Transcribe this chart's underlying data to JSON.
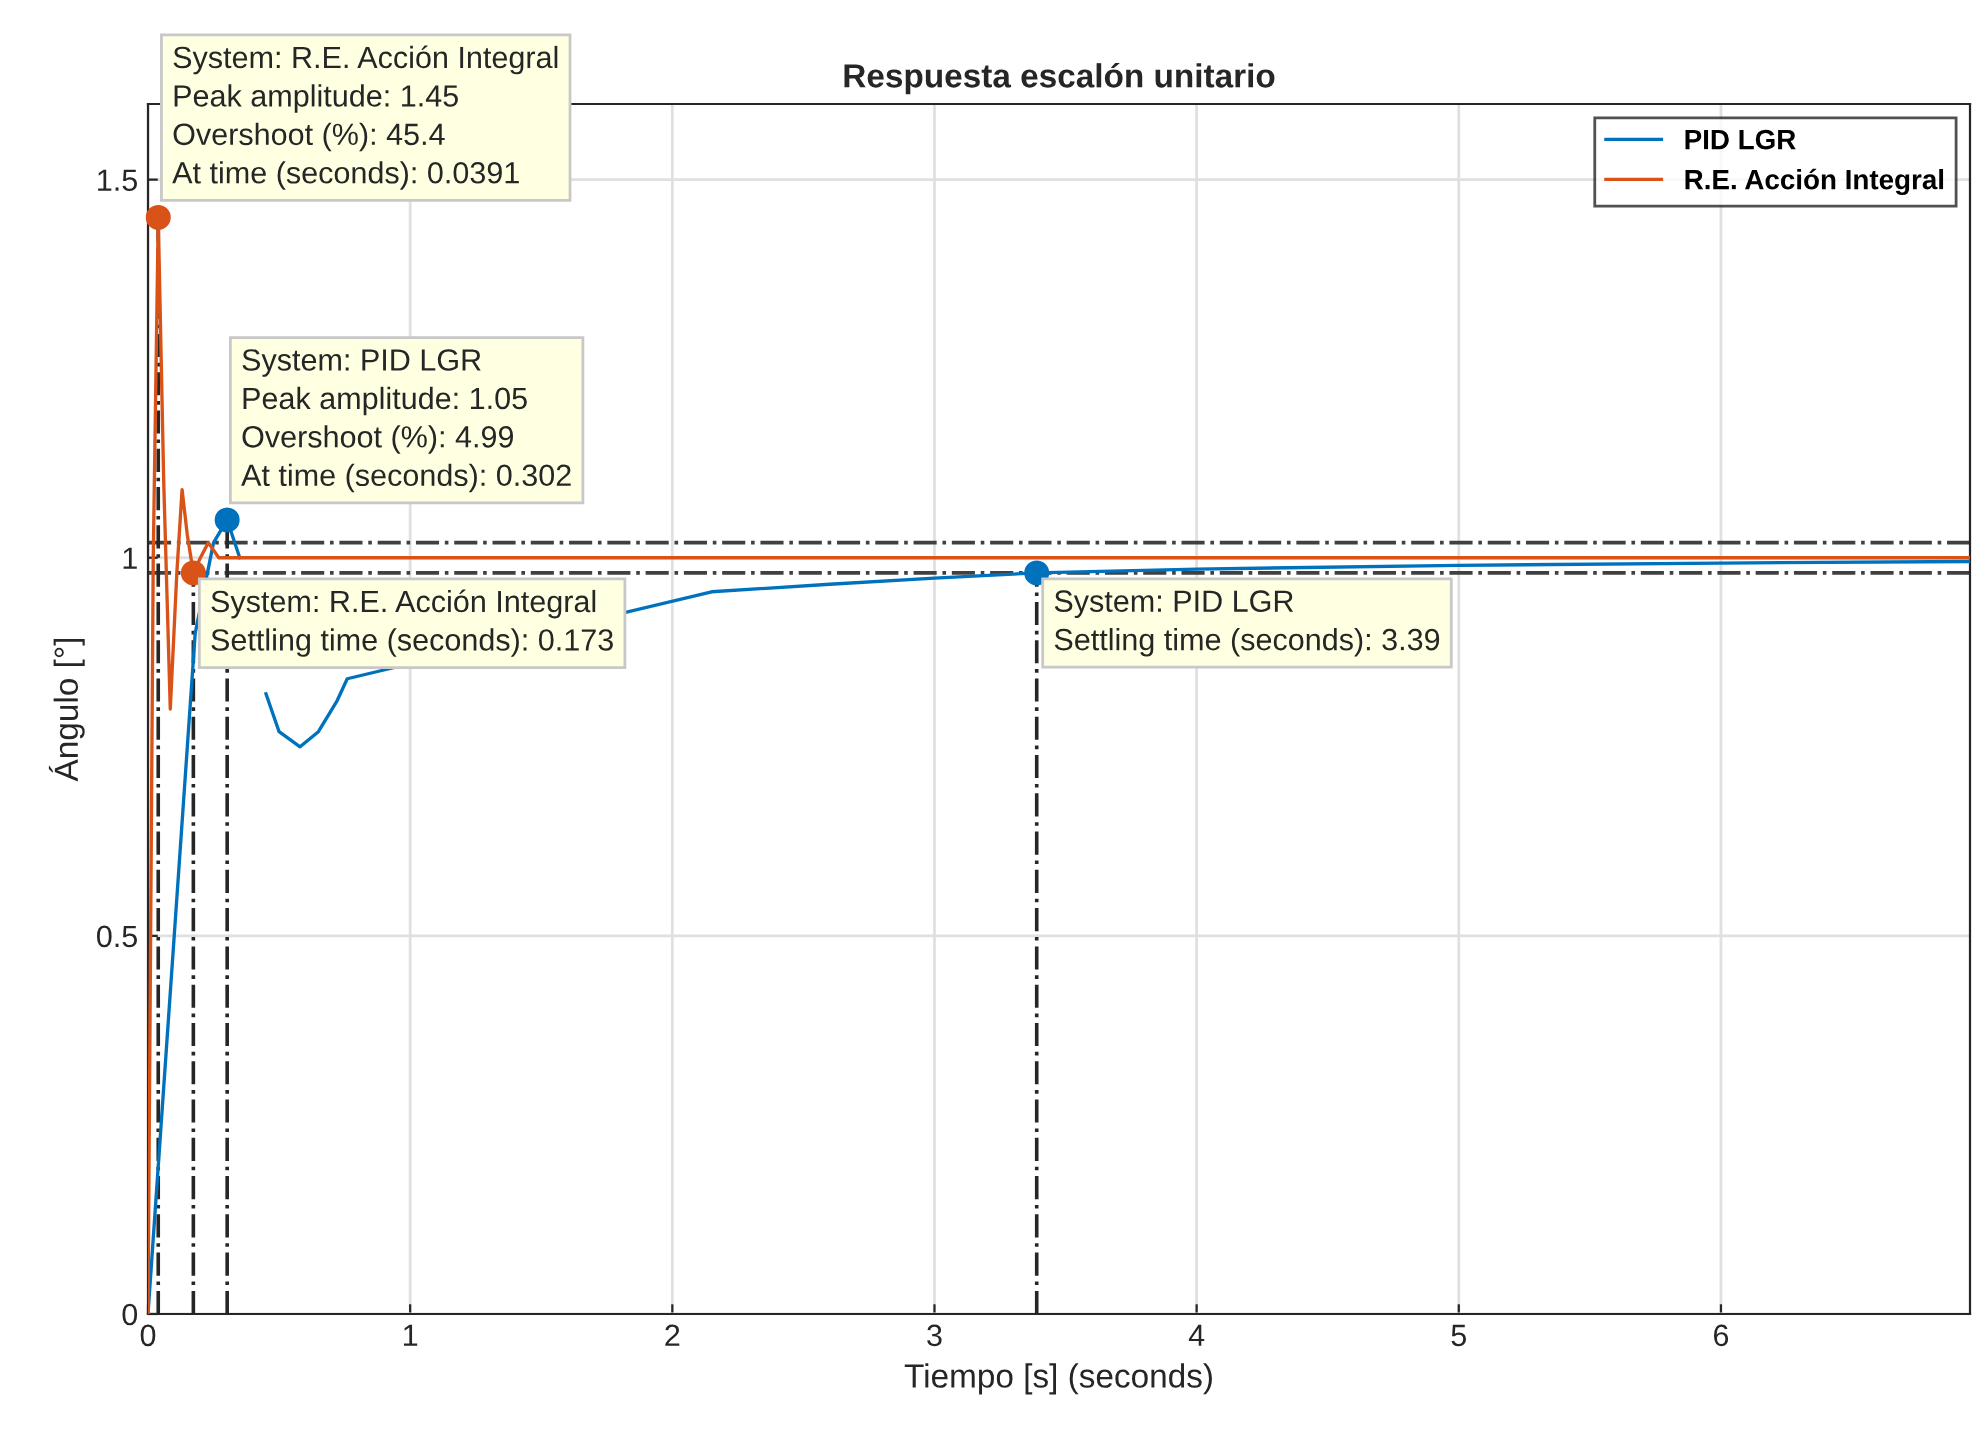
{
  "chart_data": {
    "type": "line",
    "title": "Respuesta escalón unitario",
    "xlabel": "Tiempo [s] (seconds)",
    "ylabel": "Ángulo [°]",
    "xlim": [
      0,
      6.95
    ],
    "ylim": [
      0,
      1.6
    ],
    "xticks": [
      0,
      1,
      2,
      3,
      4,
      5,
      6
    ],
    "yticks": [
      0,
      0.5,
      1,
      1.5
    ],
    "grid": true,
    "legend": "top right",
    "series": [
      {
        "name": "PID LGR",
        "color": "#0072bd",
        "x": [
          0,
          0.05,
          0.1,
          0.15,
          0.18,
          0.25,
          0.302,
          0.35,
          0.4,
          0.45,
          0.5,
          0.58,
          0.65,
          0.72,
          0.76,
          2.15,
          2.6,
          3.0,
          3.39,
          4.0,
          5.0,
          6.0,
          6.95
        ],
        "values": [
          0,
          0.25,
          0.5,
          0.75,
          0.9,
          1.02,
          1.05,
          1.0,
          null,
          0.82,
          0.77,
          0.75,
          0.77,
          0.81,
          0.84,
          0.955,
          0.965,
          0.973,
          0.98,
          0.985,
          0.99,
          0.993,
          0.995
        ]
      },
      {
        "name": "R.E. Acción Integral",
        "color": "#d95319",
        "x": [
          0,
          0.02,
          0.0391,
          0.06,
          0.085,
          0.11,
          0.13,
          0.15,
          0.173,
          0.2,
          0.23,
          0.27,
          0.35,
          1.0,
          6.95
        ],
        "values": [
          0,
          1.0,
          1.45,
          1.1,
          0.8,
          0.98,
          1.09,
          1.03,
          0.98,
          1.0,
          1.02,
          1.0,
          1.0,
          1.0,
          1.0
        ]
      }
    ],
    "ref_lines": [
      {
        "axis": "y",
        "value": 1.02,
        "color": "#404040",
        "line_style": "dashdot"
      },
      {
        "axis": "y",
        "value": 0.98,
        "color": "#404040",
        "line_style": "dashdot"
      },
      {
        "axis": "x",
        "value": 0.0391,
        "color": "#262626",
        "line_style": "dashdot"
      },
      {
        "axis": "x",
        "value": 0.173,
        "color": "#262626",
        "line_style": "dashdot"
      },
      {
        "axis": "x",
        "value": 0.302,
        "color": "#262626",
        "line_style": "dashdot"
      },
      {
        "axis": "x",
        "value": 3.39,
        "color": "#262626",
        "line_style": "dashdot"
      }
    ],
    "annotations": [
      {
        "text": "System: R.E. Acción Integral\nPeak amplitude: 1.45\nOvershoot (%): 45.4\nAt time (seconds): 0.0391",
        "x": 0.0391,
        "y": 1.45
      },
      {
        "text": "System: PID LGR\nPeak amplitude: 1.05\nOvershoot (%): 4.99\nAt time (seconds): 0.302",
        "x": 0.302,
        "y": 1.05
      },
      {
        "text": "System: R.E. Acción Integral\nSettling time (seconds): 0.173",
        "x": 0.173,
        "y": 0.98
      },
      {
        "text": "System: PID LGR\nSettling time (seconds): 3.39",
        "x": 3.39,
        "y": 0.98
      }
    ]
  }
}
